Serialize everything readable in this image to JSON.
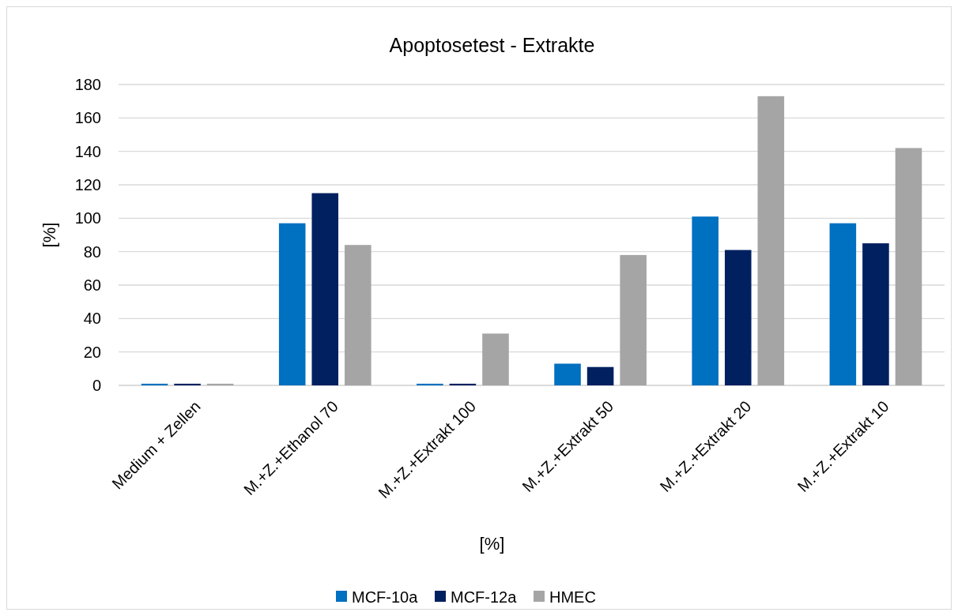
{
  "chart_data": {
    "type": "bar",
    "title": "Apoptosetest - Extrakte",
    "xlabel": "[%]",
    "ylabel": "[%]",
    "categories": [
      "Medium + Zellen",
      "M.+Z.+Ethanol 70",
      "M.+Z.+Extrakt 100",
      "M.+Z.+Extrakt 50",
      "M.+Z.+Extrakt 20",
      "M.+Z.+Extrakt 10"
    ],
    "series": [
      {
        "name": "MCF-10a",
        "color": "#0070c0",
        "values": [
          1,
          97,
          1,
          13,
          101,
          97
        ]
      },
      {
        "name": "MCF-12a",
        "color": "#002060",
        "values": [
          1,
          115,
          1,
          11,
          81,
          85
        ]
      },
      {
        "name": "HMEC",
        "color": "#a5a5a5",
        "values": [
          1,
          84,
          31,
          78,
          173,
          142
        ]
      }
    ],
    "ylim": [
      0,
      180
    ],
    "yticks": [
      0,
      20,
      40,
      60,
      80,
      100,
      120,
      140,
      160,
      180
    ],
    "grid": "y",
    "legend": "bottom"
  }
}
